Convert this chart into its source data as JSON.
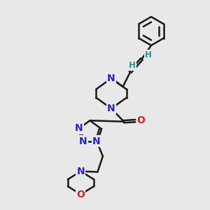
{
  "bg_color": "#e8e8e8",
  "bond_color": "#1a1a1a",
  "N_color": "#2424cc",
  "O_color": "#cc2424",
  "H_color": "#2a9090",
  "lw": 1.8,
  "fs": 10,
  "dbo": 0.055,
  "xlim": [
    0,
    10
  ],
  "ylim": [
    0,
    10
  ]
}
